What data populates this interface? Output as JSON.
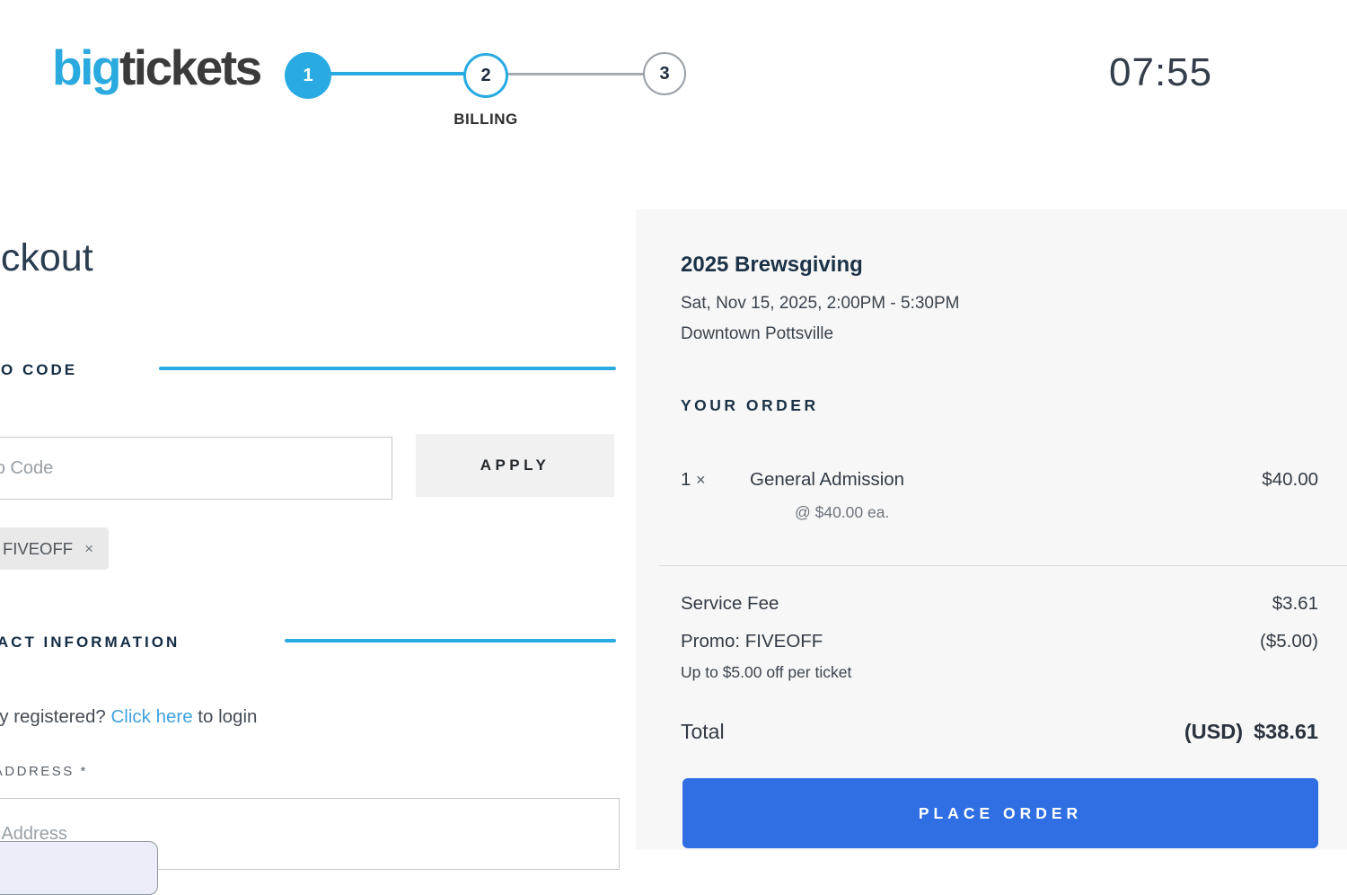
{
  "header": {
    "logo": {
      "part1": "big",
      "part2": "tickets"
    },
    "stepper": {
      "steps": [
        {
          "number": "1"
        },
        {
          "number": "2",
          "label": "BILLING"
        },
        {
          "number": "3"
        }
      ]
    },
    "timer": "07:55"
  },
  "checkout": {
    "title": "Checkout",
    "promo": {
      "heading": "PROMO CODE",
      "input_placeholder": "Promo Code",
      "apply_label": "APPLY",
      "applied_code": "FIVEOFF",
      "remove_icon": "×"
    },
    "contact": {
      "heading": "CONTACT INFORMATION",
      "login_prefix": "Already registered? ",
      "login_link": "Click here",
      "login_suffix": " to login",
      "email_label": "EMAIL ADDRESS *",
      "email_placeholder": "Email Address"
    }
  },
  "order_summary": {
    "event_name": "2025 Brewsgiving",
    "event_datetime": "Sat, Nov 15, 2025, 2:00PM - 5:30PM",
    "event_venue": "Downtown Pottsville",
    "heading": "YOUR ORDER",
    "items": [
      {
        "qty": "1",
        "times_icon": "×",
        "name": "General Admission",
        "unit_price_note": "@ $40.00 ea.",
        "price": "$40.00"
      }
    ],
    "fee_rows": [
      {
        "label": "Service Fee",
        "amount": "$3.61"
      },
      {
        "label": "Promo: FIVEOFF",
        "amount": "($5.00)"
      }
    ],
    "promo_note": "Up to $5.00 off per ticket",
    "total_label": "Total",
    "total_currency": "(USD)",
    "total_amount": "$38.61",
    "place_order_label": "PLACE ORDER"
  },
  "colors": {
    "accent_cyan": "#29abe2",
    "button_blue": "#2f6ee3",
    "panel_bg": "#f7f7f7",
    "logo_cyan": "#2baadf",
    "logo_dark": "#3b3b3c"
  }
}
